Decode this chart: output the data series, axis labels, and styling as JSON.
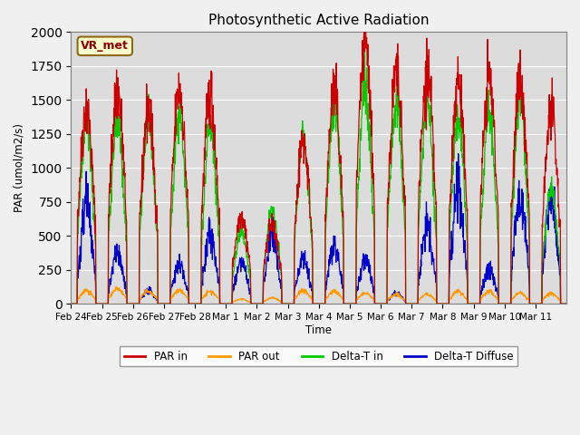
{
  "title": "Photosynthetic Active Radiation",
  "ylabel": "PAR (umol/m2/s)",
  "xlabel": "Time",
  "annotation": "VR_met",
  "ylim": [
    0,
    2000
  ],
  "background_color": "#dcdcdc",
  "legend": [
    "PAR in",
    "PAR out",
    "Delta-T in",
    "Delta-T Diffuse"
  ],
  "legend_colors": [
    "#cc0000",
    "#ff9900",
    "#00cc00",
    "#0000cc"
  ],
  "num_days": 16,
  "day_labels": [
    "Feb 24",
    "Feb 25",
    "Feb 26",
    "Feb 27",
    "Feb 28",
    "Mar 1",
    "Mar 2",
    "Mar 3",
    "Mar 4",
    "Mar 5",
    "Mar 6",
    "Mar 7",
    "Mar 8",
    "Mar 9",
    "Mar 10",
    "Mar 11"
  ],
  "par_in_peaks": [
    1460,
    1570,
    1430,
    1580,
    1540,
    650,
    580,
    1200,
    1570,
    1910,
    1680,
    1680,
    1640,
    1660,
    1610,
    1400
  ],
  "par_out_peaks": [
    100,
    110,
    95,
    100,
    90,
    35,
    45,
    100,
    95,
    80,
    70,
    70,
    90,
    90,
    80,
    80
  ],
  "delta_t_peaks": [
    1350,
    1360,
    1370,
    1400,
    1310,
    530,
    680,
    1260,
    1490,
    1600,
    1490,
    1490,
    1400,
    1410,
    1490,
    850
  ],
  "delta_t_diffuse_peaks": [
    750,
    380,
    100,
    290,
    500,
    310,
    500,
    350,
    440,
    330,
    80,
    590,
    850,
    260,
    790,
    800
  ]
}
